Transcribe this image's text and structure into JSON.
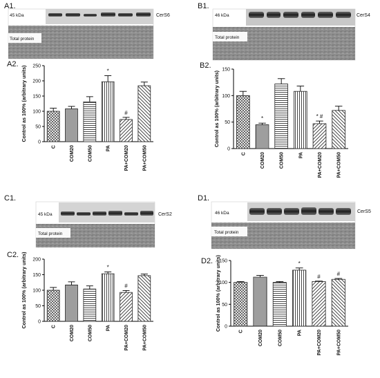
{
  "figure": {
    "panels": [
      {
        "id": "A",
        "blot_label": "A1.",
        "chart_label": "A2.",
        "blot": {
          "kda": "45 kDa",
          "protein": "CerS6",
          "total_label": "Total protein"
        }
      },
      {
        "id": "B",
        "blot_label": "B1.",
        "chart_label": "B2.",
        "blot": {
          "kda": "46 kDa",
          "protein": "CerS4",
          "total_label": "Total protein"
        }
      },
      {
        "id": "C",
        "blot_label": "C1.",
        "chart_label": "C2.",
        "blot": {
          "kda": "45 kDa",
          "protein": "CerS2",
          "total_label": "Total protein"
        }
      },
      {
        "id": "D",
        "blot_label": "D1.",
        "chart_label": "D2.",
        "blot": {
          "kda": "46 kDa",
          "protein": "CerS5",
          "total_label": "Total protein"
        }
      }
    ]
  },
  "chart_data": [
    {
      "panel": "A2.",
      "type": "bar",
      "categories": [
        "C",
        "COM20",
        "COM50",
        "PA",
        "PA+COM20",
        "PA+COM50"
      ],
      "values": [
        100,
        108,
        131,
        197,
        73,
        184
      ],
      "errors": [
        10,
        8,
        17,
        20,
        7,
        12
      ],
      "annotations": [
        "",
        "",
        "",
        "*",
        "#",
        ""
      ],
      "ylabel": "Control as 100% (arbitrary units)",
      "ylim": [
        0,
        250
      ],
      "yticks": [
        0,
        50,
        100,
        150,
        200,
        250
      ],
      "grid": false
    },
    {
      "panel": "B2.",
      "type": "bar",
      "categories": [
        "C",
        "COM20",
        "COM50",
        "PA",
        "PA+COM20",
        "PA+COM50"
      ],
      "values": [
        100,
        45,
        122,
        108,
        47,
        72
      ],
      "errors": [
        8,
        3,
        10,
        10,
        5,
        8
      ],
      "annotations": [
        "",
        "*",
        "",
        "",
        "* #",
        ""
      ],
      "ylabel": "Control as 100% (arbitrary units)",
      "ylim": [
        0,
        150
      ],
      "yticks": [
        0,
        50,
        100,
        150
      ],
      "grid": false
    },
    {
      "panel": "C2.",
      "type": "bar",
      "categories": [
        "C",
        "COM20",
        "COM50",
        "PA",
        "PA+COM20",
        "PA+COM50"
      ],
      "values": [
        100,
        117,
        104,
        153,
        93,
        147
      ],
      "errors": [
        9,
        10,
        10,
        6,
        6,
        5
      ],
      "annotations": [
        "",
        "",
        "",
        "*",
        "#",
        ""
      ],
      "ylabel": "Control as 100% (arbitrary units)",
      "ylim": [
        0,
        200
      ],
      "yticks": [
        0,
        50,
        100,
        150,
        200
      ],
      "grid": false
    },
    {
      "panel": "D2.",
      "type": "bar",
      "categories": [
        "C",
        "COM20",
        "COM50",
        "PA",
        "PA+COM20",
        "PA+COM50"
      ],
      "values": [
        100,
        112,
        100,
        128,
        102,
        107
      ],
      "errors": [
        2,
        4,
        2,
        5,
        1,
        2
      ],
      "annotations": [
        "",
        "",
        "",
        "*",
        "#",
        "#"
      ],
      "ylabel": "Control as 100% (arbitrary units)",
      "ylim": [
        0,
        150
      ],
      "yticks": [
        0,
        50,
        100,
        150
      ],
      "grid": false
    }
  ]
}
